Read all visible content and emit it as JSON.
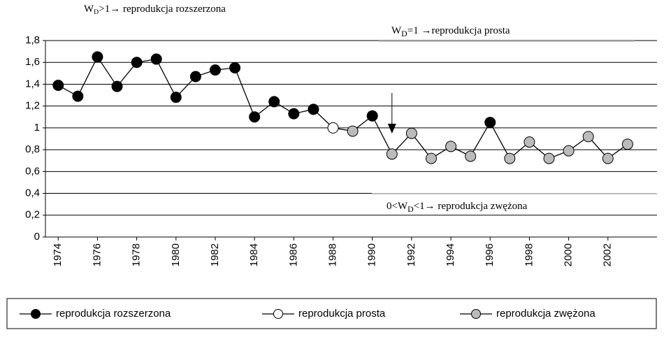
{
  "chart_data": {
    "type": "line",
    "annotations": [
      {
        "parts": [
          "W",
          "D",
          ">1→ reprodukcja rozszerzona"
        ]
      },
      {
        "parts": [
          "W",
          "D",
          "=1 →reprodukcja prosta"
        ]
      },
      {
        "parts": [
          "0<W",
          "D",
          "<1→ reprodukcja zwężona"
        ]
      }
    ],
    "x": [
      1974,
      1975,
      1976,
      1977,
      1978,
      1979,
      1980,
      1981,
      1982,
      1983,
      1984,
      1985,
      1986,
      1987,
      1988,
      1989,
      1990,
      1991,
      1992,
      1993,
      1994,
      1995,
      1996,
      1997,
      1998,
      1999,
      2000,
      2001,
      2002,
      2003
    ],
    "values": [
      1.39,
      1.29,
      1.65,
      1.38,
      1.6,
      1.63,
      1.28,
      1.47,
      1.53,
      1.55,
      1.1,
      1.24,
      1.13,
      1.17,
      1.0,
      0.97,
      1.11,
      0.76,
      0.95,
      0.72,
      0.83,
      0.74,
      1.05,
      0.72,
      0.87,
      0.72,
      0.79,
      0.92,
      0.72,
      0.85
    ],
    "point_series": [
      0,
      0,
      0,
      0,
      0,
      0,
      0,
      0,
      0,
      0,
      0,
      0,
      0,
      0,
      1,
      2,
      0,
      2,
      2,
      2,
      2,
      2,
      0,
      2,
      2,
      2,
      2,
      2,
      2,
      2
    ],
    "series": [
      {
        "name": "reprodukcja rozszerzona",
        "color": "#000000"
      },
      {
        "name": "reprodukcja prosta",
        "color": "#ffffff"
      },
      {
        "name": "reprodukcja zwężona",
        "color": "#bbbbbb"
      }
    ],
    "xlim": [
      1973.35,
      2004.5
    ],
    "xticks": [
      1974,
      1976,
      1978,
      1980,
      1982,
      1984,
      1986,
      1988,
      1990,
      1992,
      1994,
      1996,
      1998,
      2000,
      2002
    ],
    "ylim": [
      0,
      1.8
    ],
    "yticks": [
      0,
      {
        "value": 0.2,
        "label": "0,2"
      },
      {
        "value": 0.4,
        "label": "0,4"
      },
      {
        "value": 0.6,
        "label": "0,6"
      },
      {
        "value": 0.8,
        "label": "0,8"
      },
      1,
      {
        "value": 1.2,
        "label": "1,2"
      },
      {
        "value": 1.4,
        "label": "1,4"
      },
      {
        "value": 1.6,
        "label": "1,6"
      },
      {
        "value": 1.8,
        "label": "1,8"
      }
    ],
    "grid": true
  }
}
